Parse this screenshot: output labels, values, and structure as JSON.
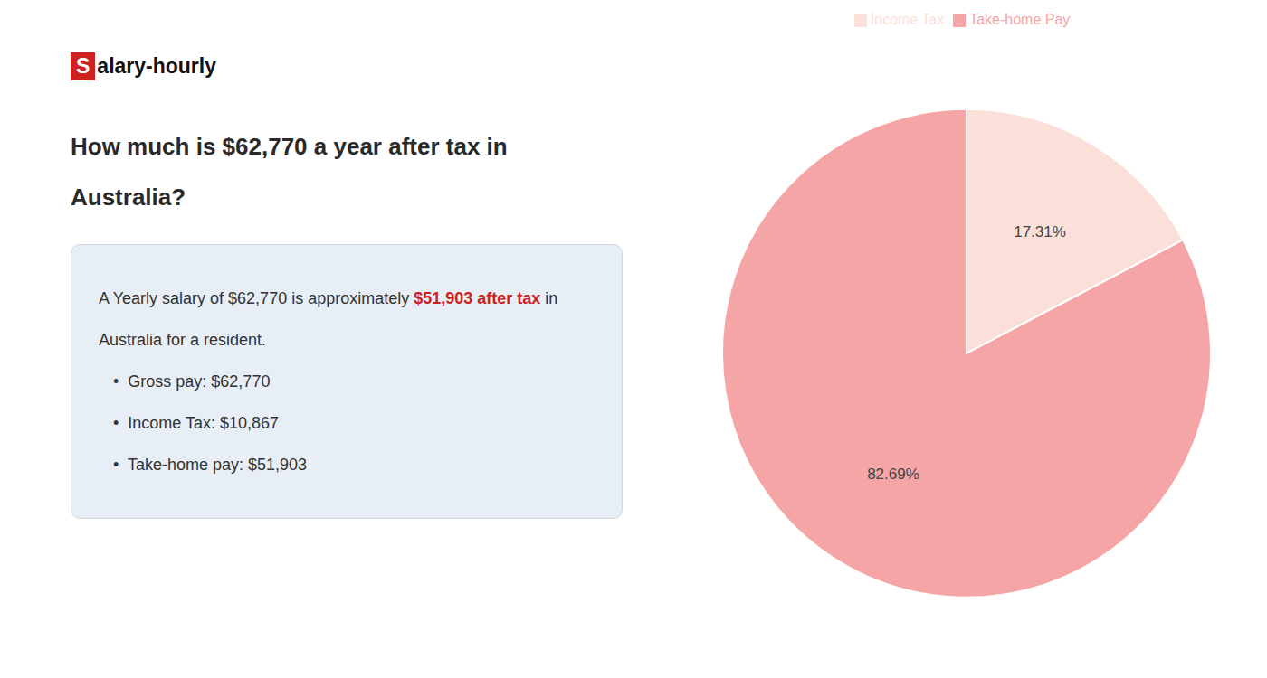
{
  "chart_data": {
    "type": "pie",
    "title": [
      "How much is $62,770 a year after tax in",
      "Australia?"
    ],
    "annotations": [
      [
        {
          "text": "S",
          "color": "#cc2222"
        },
        {
          "text": "alary-hourly"
        }
      ],
      [
        {
          "text": "A Yearly salary of $62,770 is approximately "
        },
        {
          "text": "$51,903 after tax",
          "color": "#cc2222"
        },
        {
          "text": " in"
        }
      ],
      [
        {
          "text": "Australia for a resident."
        }
      ],
      [
        {
          "text": "•  Gross pay: $62,770"
        }
      ],
      [
        {
          "text": "•  Income Tax: $10,867"
        }
      ],
      [
        {
          "text": "•  Take-home pay: $51,903"
        }
      ]
    ],
    "categories": [
      "Income Tax",
      "Take-home Pay"
    ],
    "values": [
      17.31,
      82.69
    ],
    "value_labels": [
      "17.31%",
      "82.69%"
    ],
    "colors": [
      "#fae0d8",
      "#f5a5a5"
    ],
    "data_labels": true,
    "legend": "top"
  }
}
